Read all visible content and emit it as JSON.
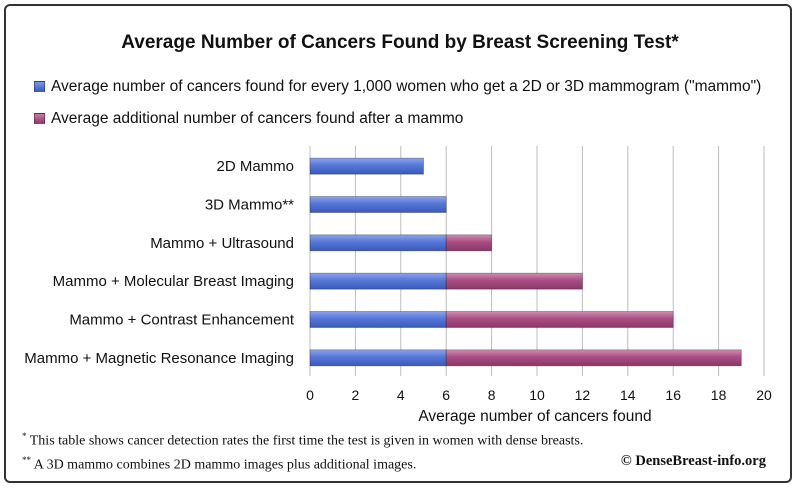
{
  "chart_data": {
    "type": "bar",
    "orientation": "horizontal",
    "stacked": true,
    "title": "Average Number of Cancers Found by Breast Screening Test*",
    "categories": [
      "2D Mammo",
      "3D Mammo**",
      "Mammo + Ultrasound",
      "Mammo + Molecular Breast Imaging",
      "Mammo + Contrast Enhancement",
      "Mammo + Magnetic Resonance Imaging"
    ],
    "series": [
      {
        "name": "Average number of cancers found for every 1,000 women who get a 2D or 3D  mammogram (\"mammo\")",
        "values": [
          5,
          6,
          6,
          6,
          6,
          6
        ],
        "color": "#4a6fd3"
      },
      {
        "name": "Average additional number of cancers found after a mammo",
        "values": [
          0,
          0,
          2,
          6,
          10,
          13
        ],
        "color": "#a5477e"
      }
    ],
    "xlabel": "Average number of cancers found",
    "ylabel": "",
    "xlim": [
      0,
      20
    ],
    "xticks": [
      "0",
      "2",
      "4",
      "6",
      "8",
      "10",
      "12",
      "14",
      "16",
      "18",
      "20"
    ],
    "grid": true,
    "legend_position": "top-left"
  },
  "footnotes": {
    "note1_marker": "*",
    "note1": " This table shows cancer detection rates the first time the test is given in women with dense breasts.",
    "note2_marker": "**",
    "note2": " A 3D mammo combines 2D mammo images plus additional images.",
    "copyright": "© DenseBreast-info.org"
  }
}
